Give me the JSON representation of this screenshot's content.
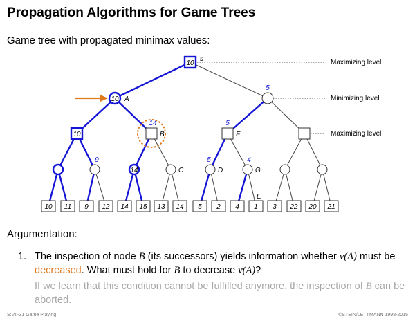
{
  "slide": {
    "title": "Propagation Algorithms for Game Trees",
    "subtitle": "Game tree with propagated minimax values:",
    "argumentation_heading": "Argumentation:",
    "item_number": "1.",
    "item_text_1": "The inspection of node ",
    "item_var_B1": "B",
    "item_text_2": " (its successors) yields information whether ",
    "item_var_vA1": "v(A)",
    "item_text_3": " must be ",
    "item_highlight": "decreased",
    "item_text_4": ". What must hold for ",
    "item_var_B2": "B",
    "item_text_5": " to decrease ",
    "item_var_vA2": "v(A)",
    "item_text_6": "?",
    "grey_text_1": "If we learn that this condition cannot be fulfilled anymore, the inspection of ",
    "grey_var_B": "B",
    "grey_text_2": " can be aborted.",
    "footer_left": "S:VII-31   Game Playing",
    "footer_right": "©STEIN/LETTMANN 1998-2015"
  },
  "colors": {
    "accent_blue": "#1515d6",
    "highlight_orange": "#e07a1f",
    "grey_text": "#a8a8a8",
    "edge_grey": "#444444"
  },
  "diagram": {
    "level_labels": [
      "Maximizing level",
      "Minimizing level",
      "Maximizing level"
    ],
    "node_labels": {
      "root": "s",
      "A": "A",
      "B": "B",
      "C": "C",
      "D": "D",
      "E": "E",
      "F": "F",
      "G": "G"
    },
    "propagated_values": {
      "root": "10",
      "A": "10",
      "left_max": "10",
      "B": "14",
      "right_min": "5",
      "F": "5",
      "minA2": "9",
      "minB1": "14",
      "D": "5",
      "G": "4"
    },
    "leaf_values": [
      "10",
      "11",
      "9",
      "12",
      "14",
      "15",
      "13",
      "14",
      "5",
      "2",
      "4",
      "1",
      "3",
      "22",
      "20",
      "21"
    ],
    "arrow_target": "A",
    "circled_node": "B"
  }
}
